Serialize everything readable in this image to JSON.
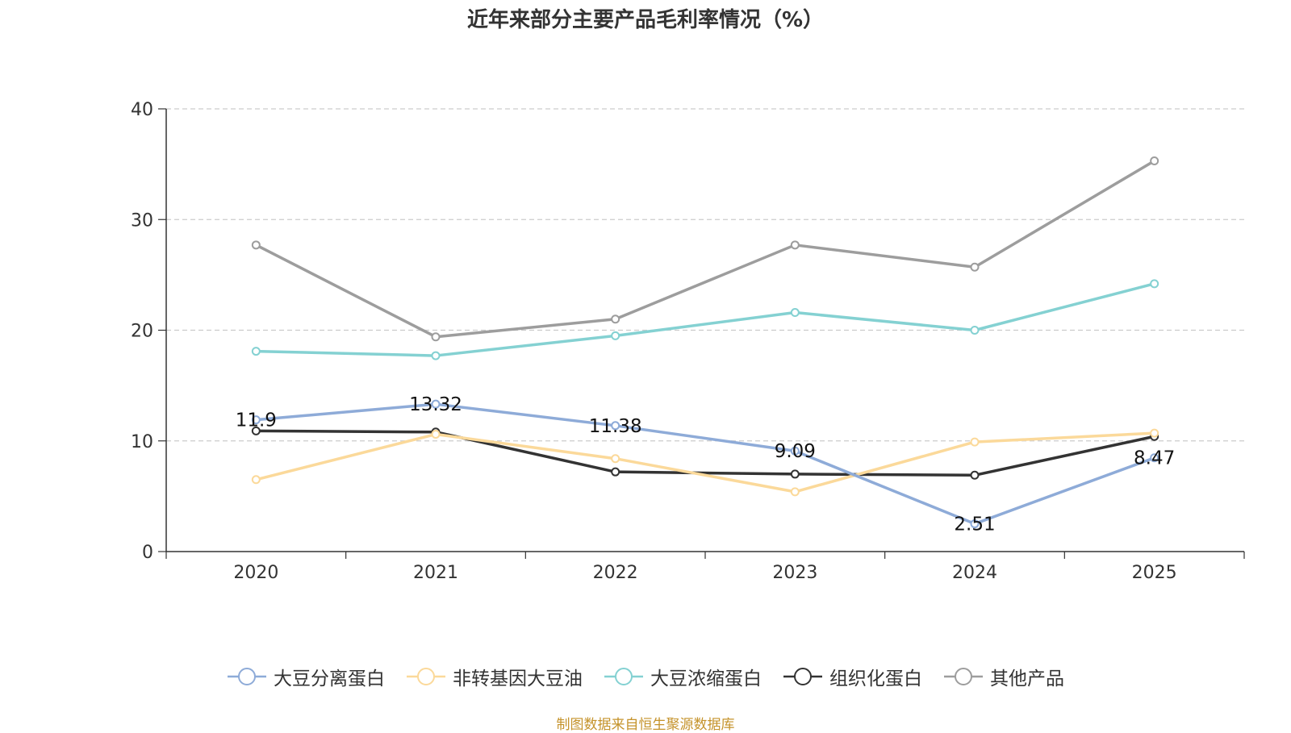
{
  "chart_data": {
    "type": "line",
    "title": "近年来部分主要产品毛利率情况（%）",
    "categories": [
      "2020",
      "2021",
      "2022",
      "2023",
      "2024",
      "2025"
    ],
    "ylim": [
      0,
      40
    ],
    "yticks": [
      0,
      10,
      20,
      30,
      40
    ],
    "grid": true,
    "legend_position": "bottom",
    "series": [
      {
        "name": "大豆分离蛋白",
        "color": "#8eabd8",
        "values": [
          11.9,
          13.32,
          11.38,
          9.09,
          2.51,
          8.47
        ],
        "labels": [
          "11.9",
          "13.32",
          "11.38",
          "9.09",
          "2.51",
          "8.47"
        ]
      },
      {
        "name": "非转基因大豆油",
        "color": "#fbd99a",
        "values": [
          6.5,
          10.6,
          8.4,
          5.4,
          9.9,
          10.7
        ]
      },
      {
        "name": "大豆浓缩蛋白",
        "color": "#84d1d2",
        "values": [
          18.1,
          17.7,
          19.5,
          21.6,
          20.0,
          24.2
        ]
      },
      {
        "name": "组织化蛋白",
        "color": "#333333",
        "values": [
          10.9,
          10.8,
          7.2,
          7.0,
          6.9,
          10.4
        ]
      },
      {
        "name": "其他产品",
        "color": "#9d9d9d",
        "values": [
          27.7,
          19.4,
          21.0,
          27.7,
          25.7,
          35.3
        ]
      }
    ]
  },
  "source": "制图数据来自恒生聚源数据库"
}
